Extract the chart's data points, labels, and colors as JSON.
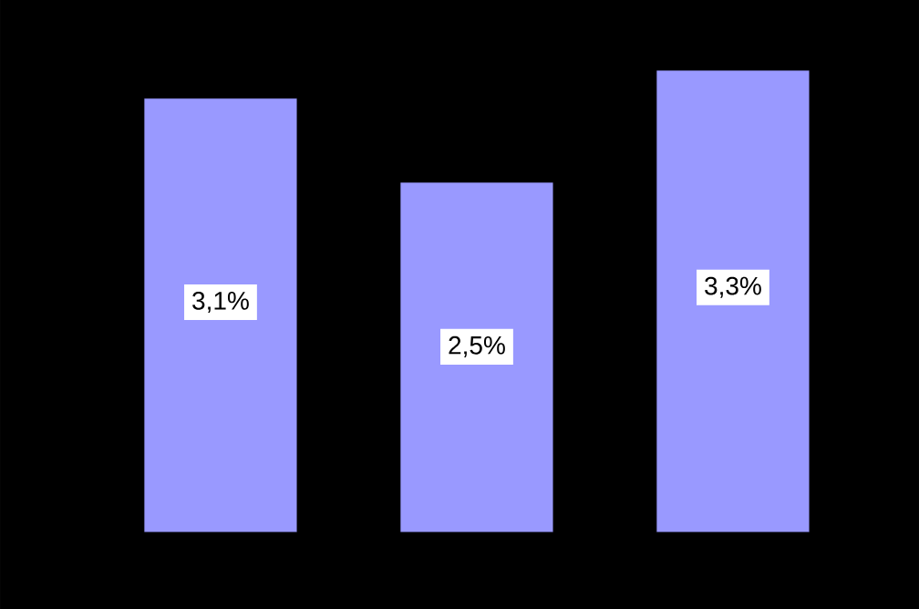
{
  "chart_data": {
    "type": "bar",
    "categories": [
      null,
      null,
      null
    ],
    "values": [
      3.1,
      2.5,
      3.3
    ],
    "color": "#9999ff",
    "value_labels": [
      "3,1%",
      "2,5%",
      "3,3%"
    ]
  }
}
